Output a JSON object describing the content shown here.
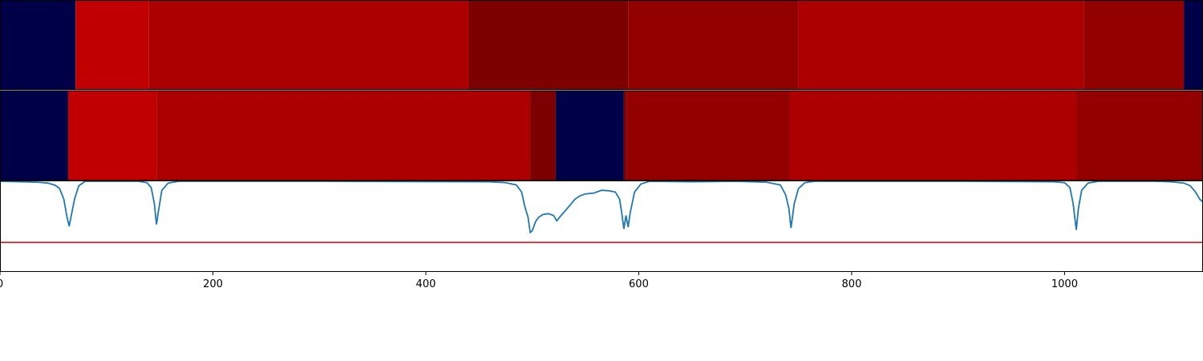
{
  "colors": {
    "navy": "#000048",
    "red_bright": "#c00000",
    "red_mid": "#ac0000",
    "red_dark": "#930000",
    "red_darkest": "#7c0000",
    "line": "#1f77b4",
    "threshold": "#e8141c"
  },
  "chart_data": {
    "type": "heatmap",
    "xlim": [
      0,
      1130
    ],
    "x_ticks": [
      {
        "value": 0,
        "label": "0"
      },
      {
        "value": 200,
        "label": "200"
      },
      {
        "value": 400,
        "label": "400"
      },
      {
        "value": 600,
        "label": "600"
      },
      {
        "value": 800,
        "label": "800"
      },
      {
        "value": 1000,
        "label": "1000"
      }
    ],
    "segment_rows": [
      {
        "segments": [
          {
            "start": 0,
            "end": 71,
            "color": "#000048"
          },
          {
            "start": 71,
            "end": 140,
            "color": "#c00000"
          },
          {
            "start": 140,
            "end": 440,
            "color": "#ac0000"
          },
          {
            "start": 440,
            "end": 590,
            "color": "#7c0000"
          },
          {
            "start": 590,
            "end": 750,
            "color": "#930000"
          },
          {
            "start": 750,
            "end": 1018,
            "color": "#ac0000"
          },
          {
            "start": 1018,
            "end": 1112,
            "color": "#930000"
          },
          {
            "start": 1112,
            "end": 1130,
            "color": "#000048"
          }
        ]
      },
      {
        "segments": [
          {
            "start": 0,
            "end": 64,
            "color": "#000048"
          },
          {
            "start": 64,
            "end": 147,
            "color": "#c00000"
          },
          {
            "start": 147,
            "end": 498,
            "color": "#ac0000"
          },
          {
            "start": 498,
            "end": 522,
            "color": "#7c0000"
          },
          {
            "start": 522,
            "end": 586,
            "color": "#000048"
          },
          {
            "start": 586,
            "end": 589,
            "color": "#7c0000"
          },
          {
            "start": 589,
            "end": 742,
            "color": "#930000"
          },
          {
            "start": 742,
            "end": 1011,
            "color": "#ac0000"
          },
          {
            "start": 1011,
            "end": 1130,
            "color": "#930000"
          }
        ]
      }
    ],
    "signal": {
      "ylim": [
        0,
        1
      ],
      "threshold": 0.32,
      "points": [
        [
          0,
          1.0
        ],
        [
          20,
          0.995
        ],
        [
          35,
          0.99
        ],
        [
          45,
          0.98
        ],
        [
          52,
          0.955
        ],
        [
          56,
          0.92
        ],
        [
          60,
          0.8
        ],
        [
          63,
          0.6
        ],
        [
          65,
          0.5
        ],
        [
          67,
          0.62
        ],
        [
          70,
          0.8
        ],
        [
          74,
          0.95
        ],
        [
          80,
          1.0
        ],
        [
          130,
          1.0
        ],
        [
          138,
          0.985
        ],
        [
          142,
          0.93
        ],
        [
          145,
          0.75
        ],
        [
          147,
          0.52
        ],
        [
          149,
          0.68
        ],
        [
          152,
          0.9
        ],
        [
          158,
          0.98
        ],
        [
          168,
          1.0
        ],
        [
          300,
          1.0
        ],
        [
          460,
          0.995
        ],
        [
          475,
          0.985
        ],
        [
          485,
          0.96
        ],
        [
          490,
          0.88
        ],
        [
          493,
          0.72
        ],
        [
          496,
          0.6
        ],
        [
          498,
          0.43
        ],
        [
          500,
          0.45
        ],
        [
          503,
          0.55
        ],
        [
          506,
          0.6
        ],
        [
          510,
          0.63
        ],
        [
          515,
          0.64
        ],
        [
          520,
          0.62
        ],
        [
          523,
          0.56
        ],
        [
          527,
          0.62
        ],
        [
          533,
          0.7
        ],
        [
          540,
          0.8
        ],
        [
          545,
          0.84
        ],
        [
          550,
          0.86
        ],
        [
          558,
          0.87
        ],
        [
          565,
          0.9
        ],
        [
          572,
          0.895
        ],
        [
          578,
          0.88
        ],
        [
          582,
          0.8
        ],
        [
          584,
          0.65
        ],
        [
          586,
          0.47
        ],
        [
          588,
          0.62
        ],
        [
          590,
          0.49
        ],
        [
          592,
          0.65
        ],
        [
          596,
          0.88
        ],
        [
          602,
          0.97
        ],
        [
          610,
          1.0
        ],
        [
          650,
          0.995
        ],
        [
          690,
          1.0
        ],
        [
          720,
          0.99
        ],
        [
          733,
          0.96
        ],
        [
          738,
          0.85
        ],
        [
          741,
          0.7
        ],
        [
          743,
          0.48
        ],
        [
          746,
          0.75
        ],
        [
          750,
          0.92
        ],
        [
          756,
          0.985
        ],
        [
          765,
          1.0
        ],
        [
          900,
          1.0
        ],
        [
          990,
          0.995
        ],
        [
          1000,
          0.985
        ],
        [
          1005,
          0.93
        ],
        [
          1008,
          0.75
        ],
        [
          1011,
          0.46
        ],
        [
          1013,
          0.7
        ],
        [
          1016,
          0.9
        ],
        [
          1022,
          0.98
        ],
        [
          1032,
          1.0
        ],
        [
          1085,
          1.0
        ],
        [
          1100,
          0.995
        ],
        [
          1112,
          0.98
        ],
        [
          1118,
          0.95
        ],
        [
          1123,
          0.88
        ],
        [
          1127,
          0.8
        ],
        [
          1130,
          0.77
        ]
      ]
    }
  }
}
